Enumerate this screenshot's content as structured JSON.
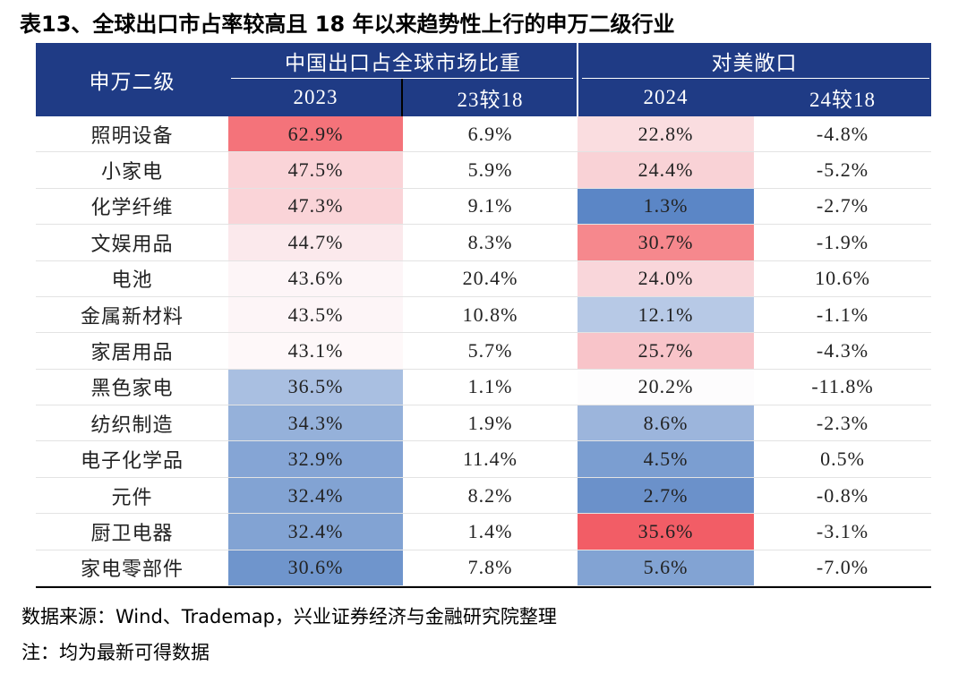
{
  "title": "表13、全球出口市占率较高且 18 年以来趋势性上行的申万二级行业",
  "header": {
    "row_label": "申万二级",
    "group1": "中国出口占全球市场比重",
    "group2": "对美敞口",
    "columns": [
      "2023",
      "23较18",
      "2024",
      "24较18"
    ]
  },
  "table": {
    "rows": [
      [
        "照明设备",
        "62.9%",
        "6.9%",
        "22.8%",
        "-4.8%"
      ],
      [
        "小家电",
        "47.5%",
        "5.9%",
        "24.4%",
        "-5.2%"
      ],
      [
        "化学纤维",
        "47.3%",
        "9.1%",
        "1.3%",
        "-2.7%"
      ],
      [
        "文娱用品",
        "44.7%",
        "8.3%",
        "30.7%",
        "-1.9%"
      ],
      [
        "电池",
        "43.6%",
        "20.4%",
        "24.0%",
        "10.6%"
      ],
      [
        "金属新材料",
        "43.5%",
        "10.8%",
        "12.1%",
        "-1.1%"
      ],
      [
        "家居用品",
        "43.1%",
        "5.7%",
        "25.7%",
        "-4.3%"
      ],
      [
        "黑色家电",
        "36.5%",
        "1.1%",
        "20.2%",
        "-11.8%"
      ],
      [
        "纺织制造",
        "34.3%",
        "1.9%",
        "8.6%",
        "-2.3%"
      ],
      [
        "电子化学品",
        "32.9%",
        "11.4%",
        "4.5%",
        "0.5%"
      ],
      [
        "元件",
        "32.4%",
        "8.2%",
        "2.7%",
        "-0.8%"
      ],
      [
        "厨卫电器",
        "32.4%",
        "1.4%",
        "35.6%",
        "-3.1%"
      ],
      [
        "家电零部件",
        "30.6%",
        "7.8%",
        "5.6%",
        "-7.0%"
      ]
    ],
    "heat_colors": [
      [
        "#f4737a",
        "#fadde0"
      ],
      [
        "#fad4d8",
        "#f9d2d6"
      ],
      [
        "#fad4d8",
        "#5b86c6"
      ],
      [
        "#fbe9ec",
        "#f6888d"
      ],
      [
        "#fdf5f7",
        "#f9d6da"
      ],
      [
        "#fdf5f7",
        "#b7c9e6"
      ],
      [
        "#fef8f9",
        "#f8c4c9"
      ],
      [
        "#a9bfe1",
        "#fdfcfd"
      ],
      [
        "#95b1da",
        "#9cb5dc"
      ],
      [
        "#85a5d5",
        "#7b9ed1"
      ],
      [
        "#82a3d3",
        "#6b91ca"
      ],
      [
        "#82a3d3",
        "#f25d66"
      ],
      [
        "#6f95cc",
        "#82a3d3"
      ]
    ]
  },
  "notes": [
    "数据来源：Wind、Trademap，兴业证券经济与金融研究院整理",
    "注：均为最新可得数据"
  ]
}
